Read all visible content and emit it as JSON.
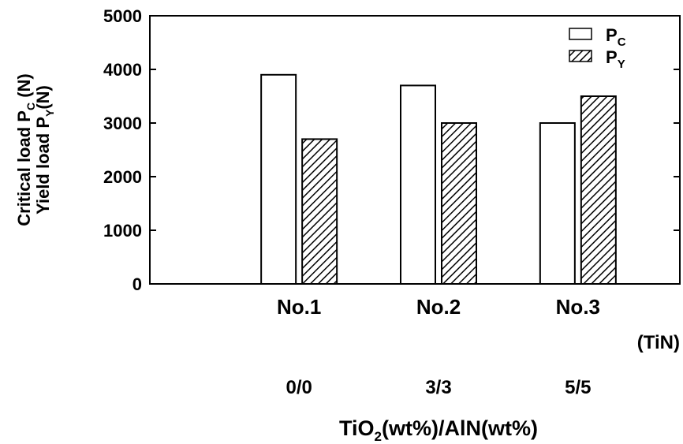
{
  "chart_data": {
    "type": "bar",
    "categories": [
      "No.1",
      "No.2",
      "No.3"
    ],
    "category_unit": "(TiN)",
    "sub_labels": [
      "0/0",
      "3/3",
      "5/5"
    ],
    "x_title": {
      "main": "TiO",
      "sub": "2",
      "rest": "(wt%)/AlN(wt%)"
    },
    "y_title_lines": [
      {
        "main": "Critical load  P",
        "sub": "C",
        "rest": " (N)"
      },
      {
        "main": "Yield load  P",
        "sub": "Y",
        "rest": "(N)"
      }
    ],
    "ylim": [
      0,
      5000
    ],
    "yticks": [
      0,
      1000,
      2000,
      3000,
      4000,
      5000
    ],
    "legend_position": "top-right",
    "series": [
      {
        "name_main": "P",
        "name_sub": "C",
        "fill": "open",
        "values": [
          3900,
          3700,
          3000
        ]
      },
      {
        "name_main": "P",
        "name_sub": "Y",
        "fill": "hatched",
        "values": [
          2700,
          3000,
          3500
        ]
      }
    ]
  }
}
